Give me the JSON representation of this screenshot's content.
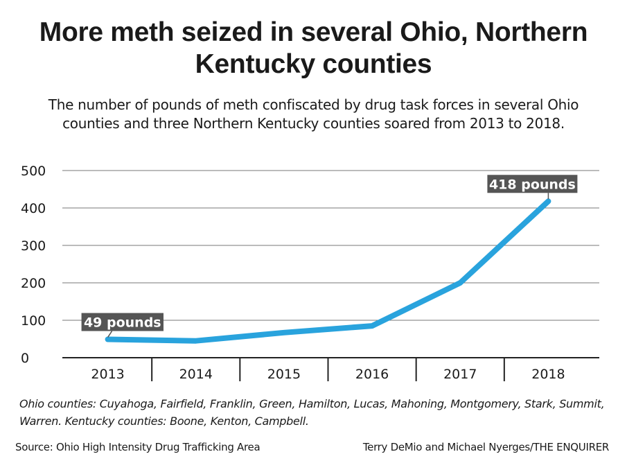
{
  "title": "More meth seized in several Ohio, Northern Kentucky counties",
  "subtitle": "The number of pounds of meth confiscated by drug task forces in several Ohio counties and three Northern Kentucky counties soared from 2013 to 2018.",
  "chart_data": {
    "type": "line",
    "categories": [
      "2013",
      "2014",
      "2015",
      "2016",
      "2017",
      "2018"
    ],
    "values": [
      49,
      45,
      67,
      85,
      200,
      418
    ],
    "ylim": [
      0,
      500
    ],
    "yticks": [
      0,
      100,
      200,
      300,
      400,
      500
    ],
    "grid": true,
    "line_color": "#29a3dd",
    "annotations": [
      {
        "index": 0,
        "label": "49 pounds"
      },
      {
        "index": 5,
        "label": "418 pounds"
      }
    ]
  },
  "footnote": "Ohio counties: Cuyahoga, Fairfield, Franklin, Green, Hamilton, Lucas, Mahoning, Montgomery, Stark, Summit, Warren. Kentucky counties: Boone, Kenton, Campbell.",
  "source": "Source: Ohio High Intensity Drug Trafficking Area",
  "credit": "Terry DeMio and Michael Nyerges/THE ENQUIRER"
}
